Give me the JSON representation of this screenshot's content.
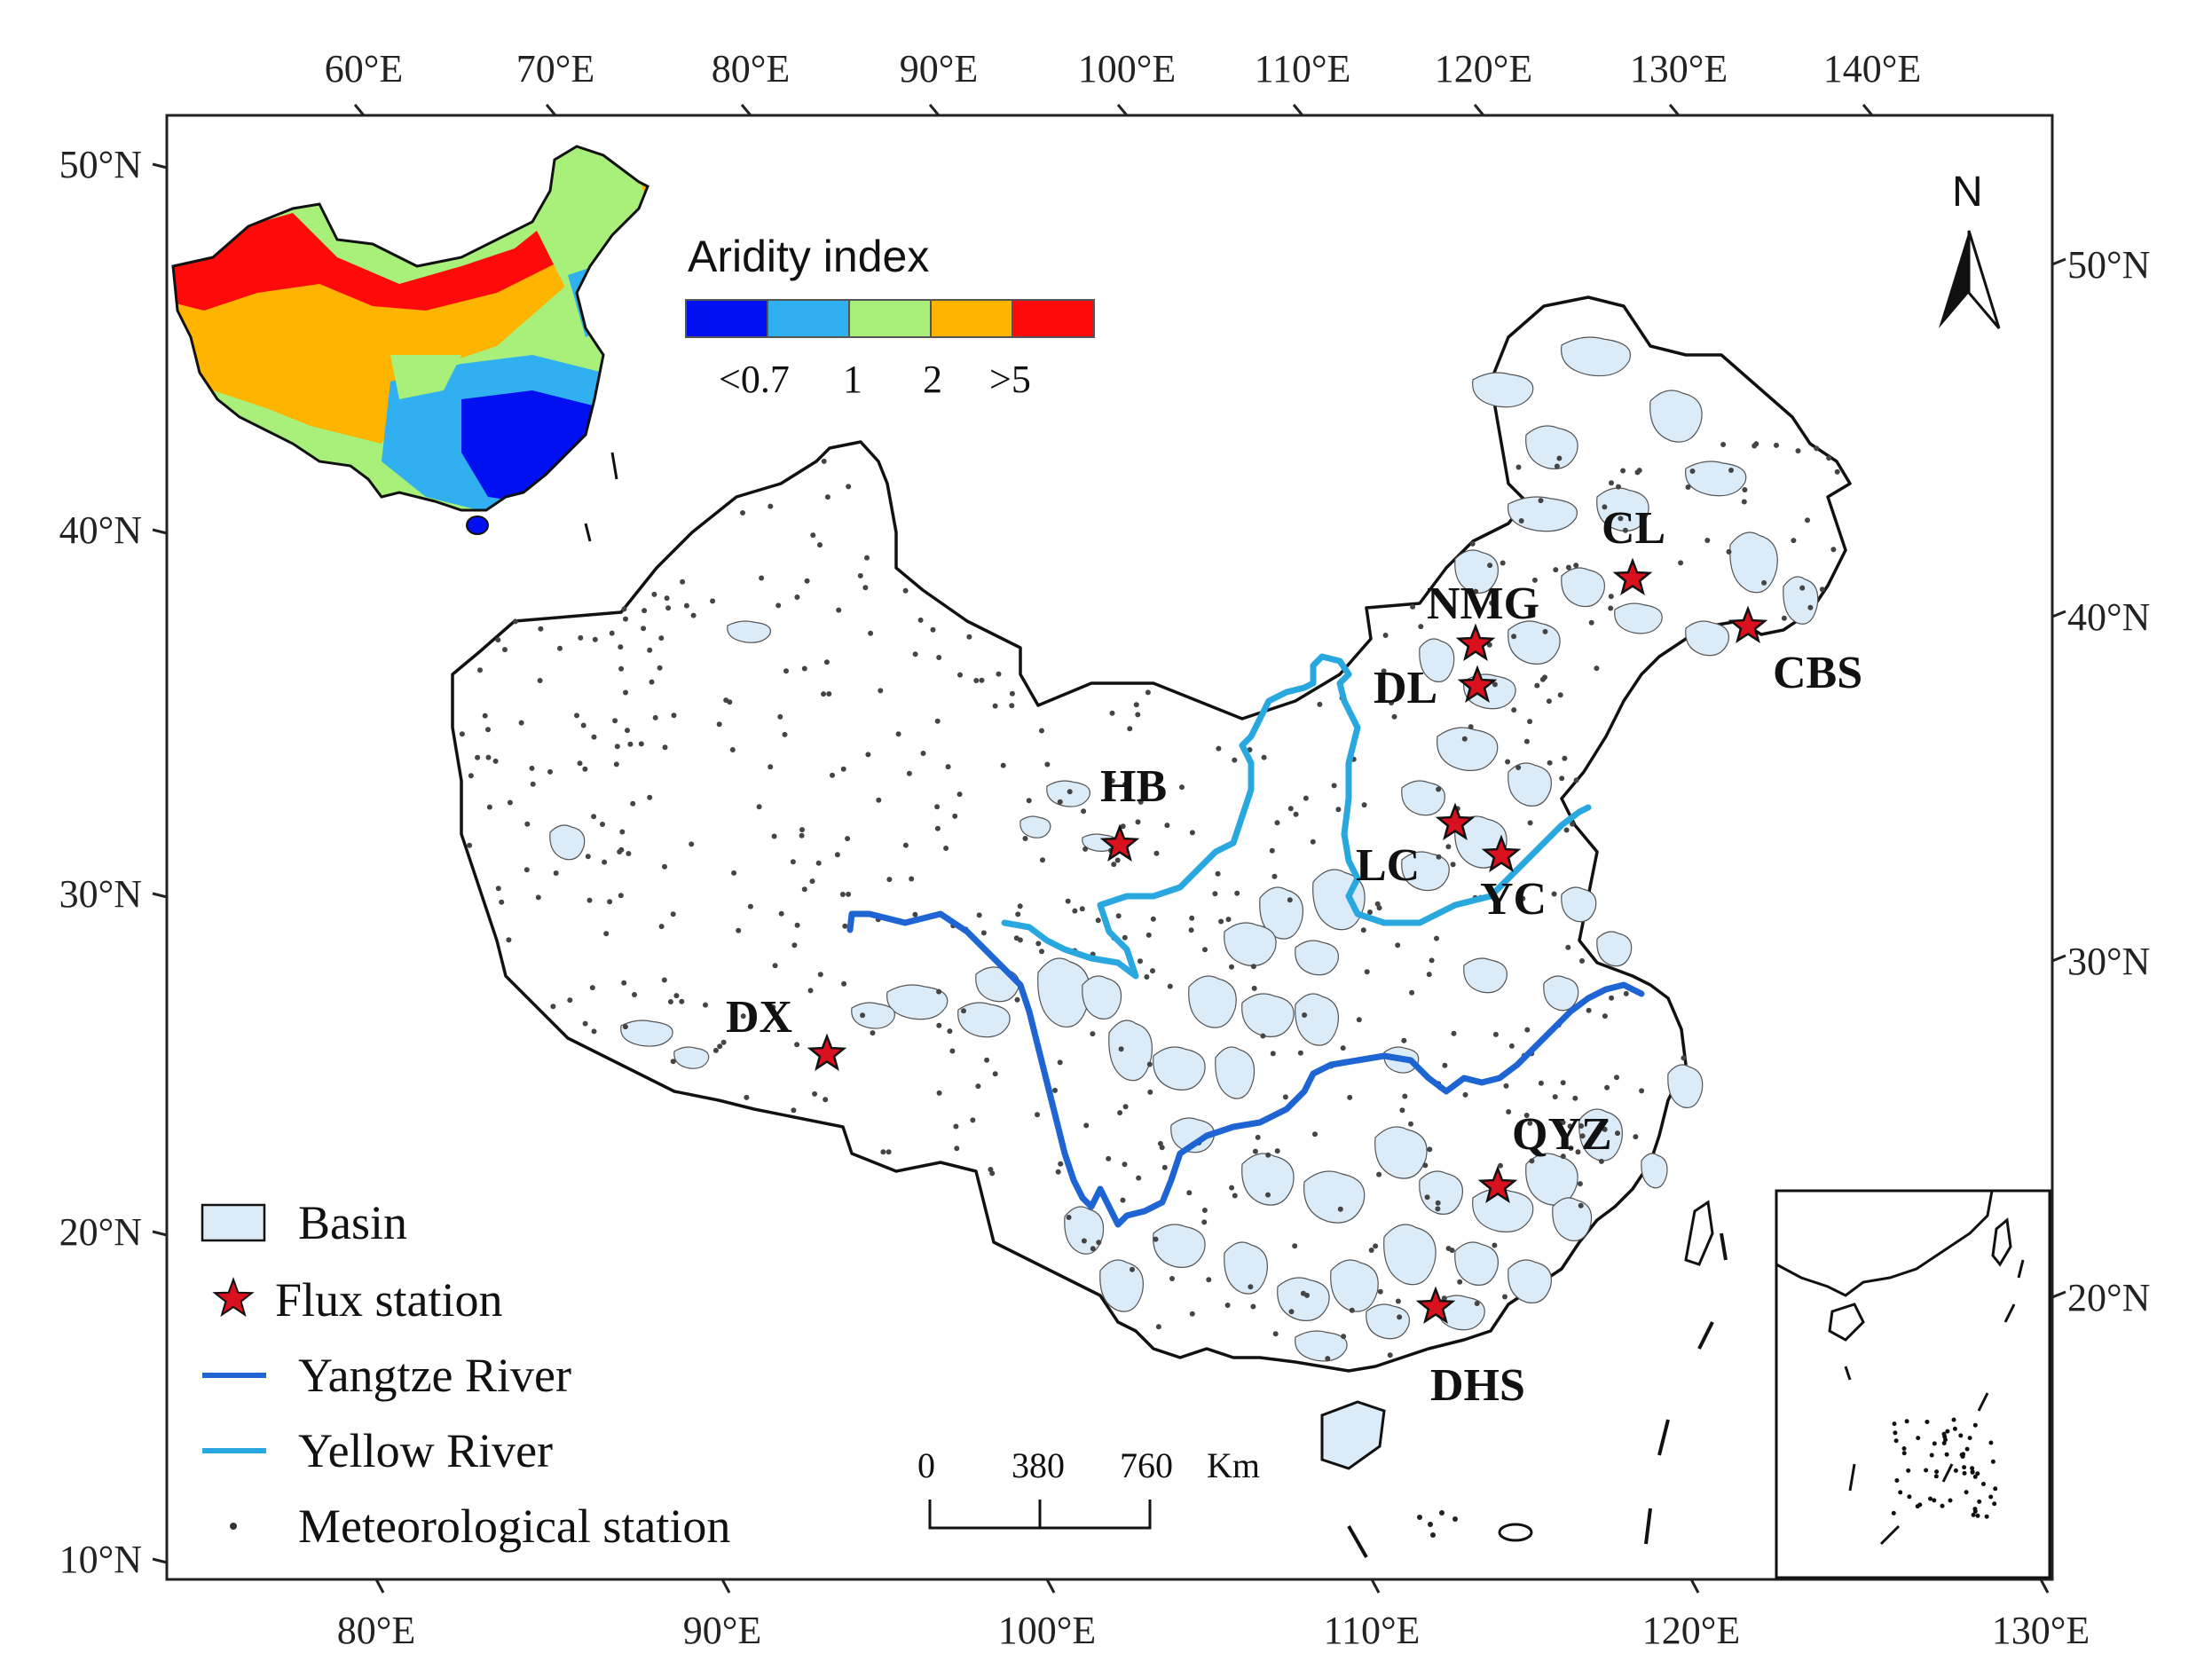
{
  "colors": {
    "basin_fill": "#dcebf8",
    "yangtze": "#1e64d2",
    "yellow_river": "#29a8e0",
    "flux_star": "#d9111e",
    "aridity": [
      "#0010f0",
      "#30b0f0",
      "#a8f07a",
      "#ffb400",
      "#ff0a0a"
    ]
  },
  "axes": {
    "top_lon_labels": [
      "60°E",
      "70°E",
      "80°E",
      "90°E",
      "100°E",
      "110°E",
      "120°E",
      "130°E",
      "140°E"
    ],
    "bottom_lon_labels": [
      "80°E",
      "90°E",
      "100°E",
      "110°E",
      "120°E",
      "130°E"
    ],
    "left_lat_labels": [
      "50°N",
      "40°N",
      "30°N",
      "20°N",
      "10°N"
    ],
    "right_lat_labels": [
      "50°N",
      "40°N",
      "30°N",
      "20°N"
    ]
  },
  "aridity_legend": {
    "title": "Aridity index",
    "labels": [
      "<0.7",
      "1",
      "2",
      ">5"
    ]
  },
  "flux_stations": [
    {
      "code": "CL"
    },
    {
      "code": "NMG"
    },
    {
      "code": "DL"
    },
    {
      "code": "CBS"
    },
    {
      "code": "HB"
    },
    {
      "code": "LC"
    },
    {
      "code": "YC"
    },
    {
      "code": "DX"
    },
    {
      "code": "QYZ"
    },
    {
      "code": "DHS"
    }
  ],
  "legend": {
    "basin": "Basin",
    "flux_station": "Flux station",
    "yangtze": "Yangtze River",
    "yellow": "Yellow River",
    "met_station": "Meteorological station"
  },
  "scale_bar": {
    "labels": [
      "0",
      "380",
      "760"
    ],
    "unit": "Km"
  },
  "north_label": "N"
}
